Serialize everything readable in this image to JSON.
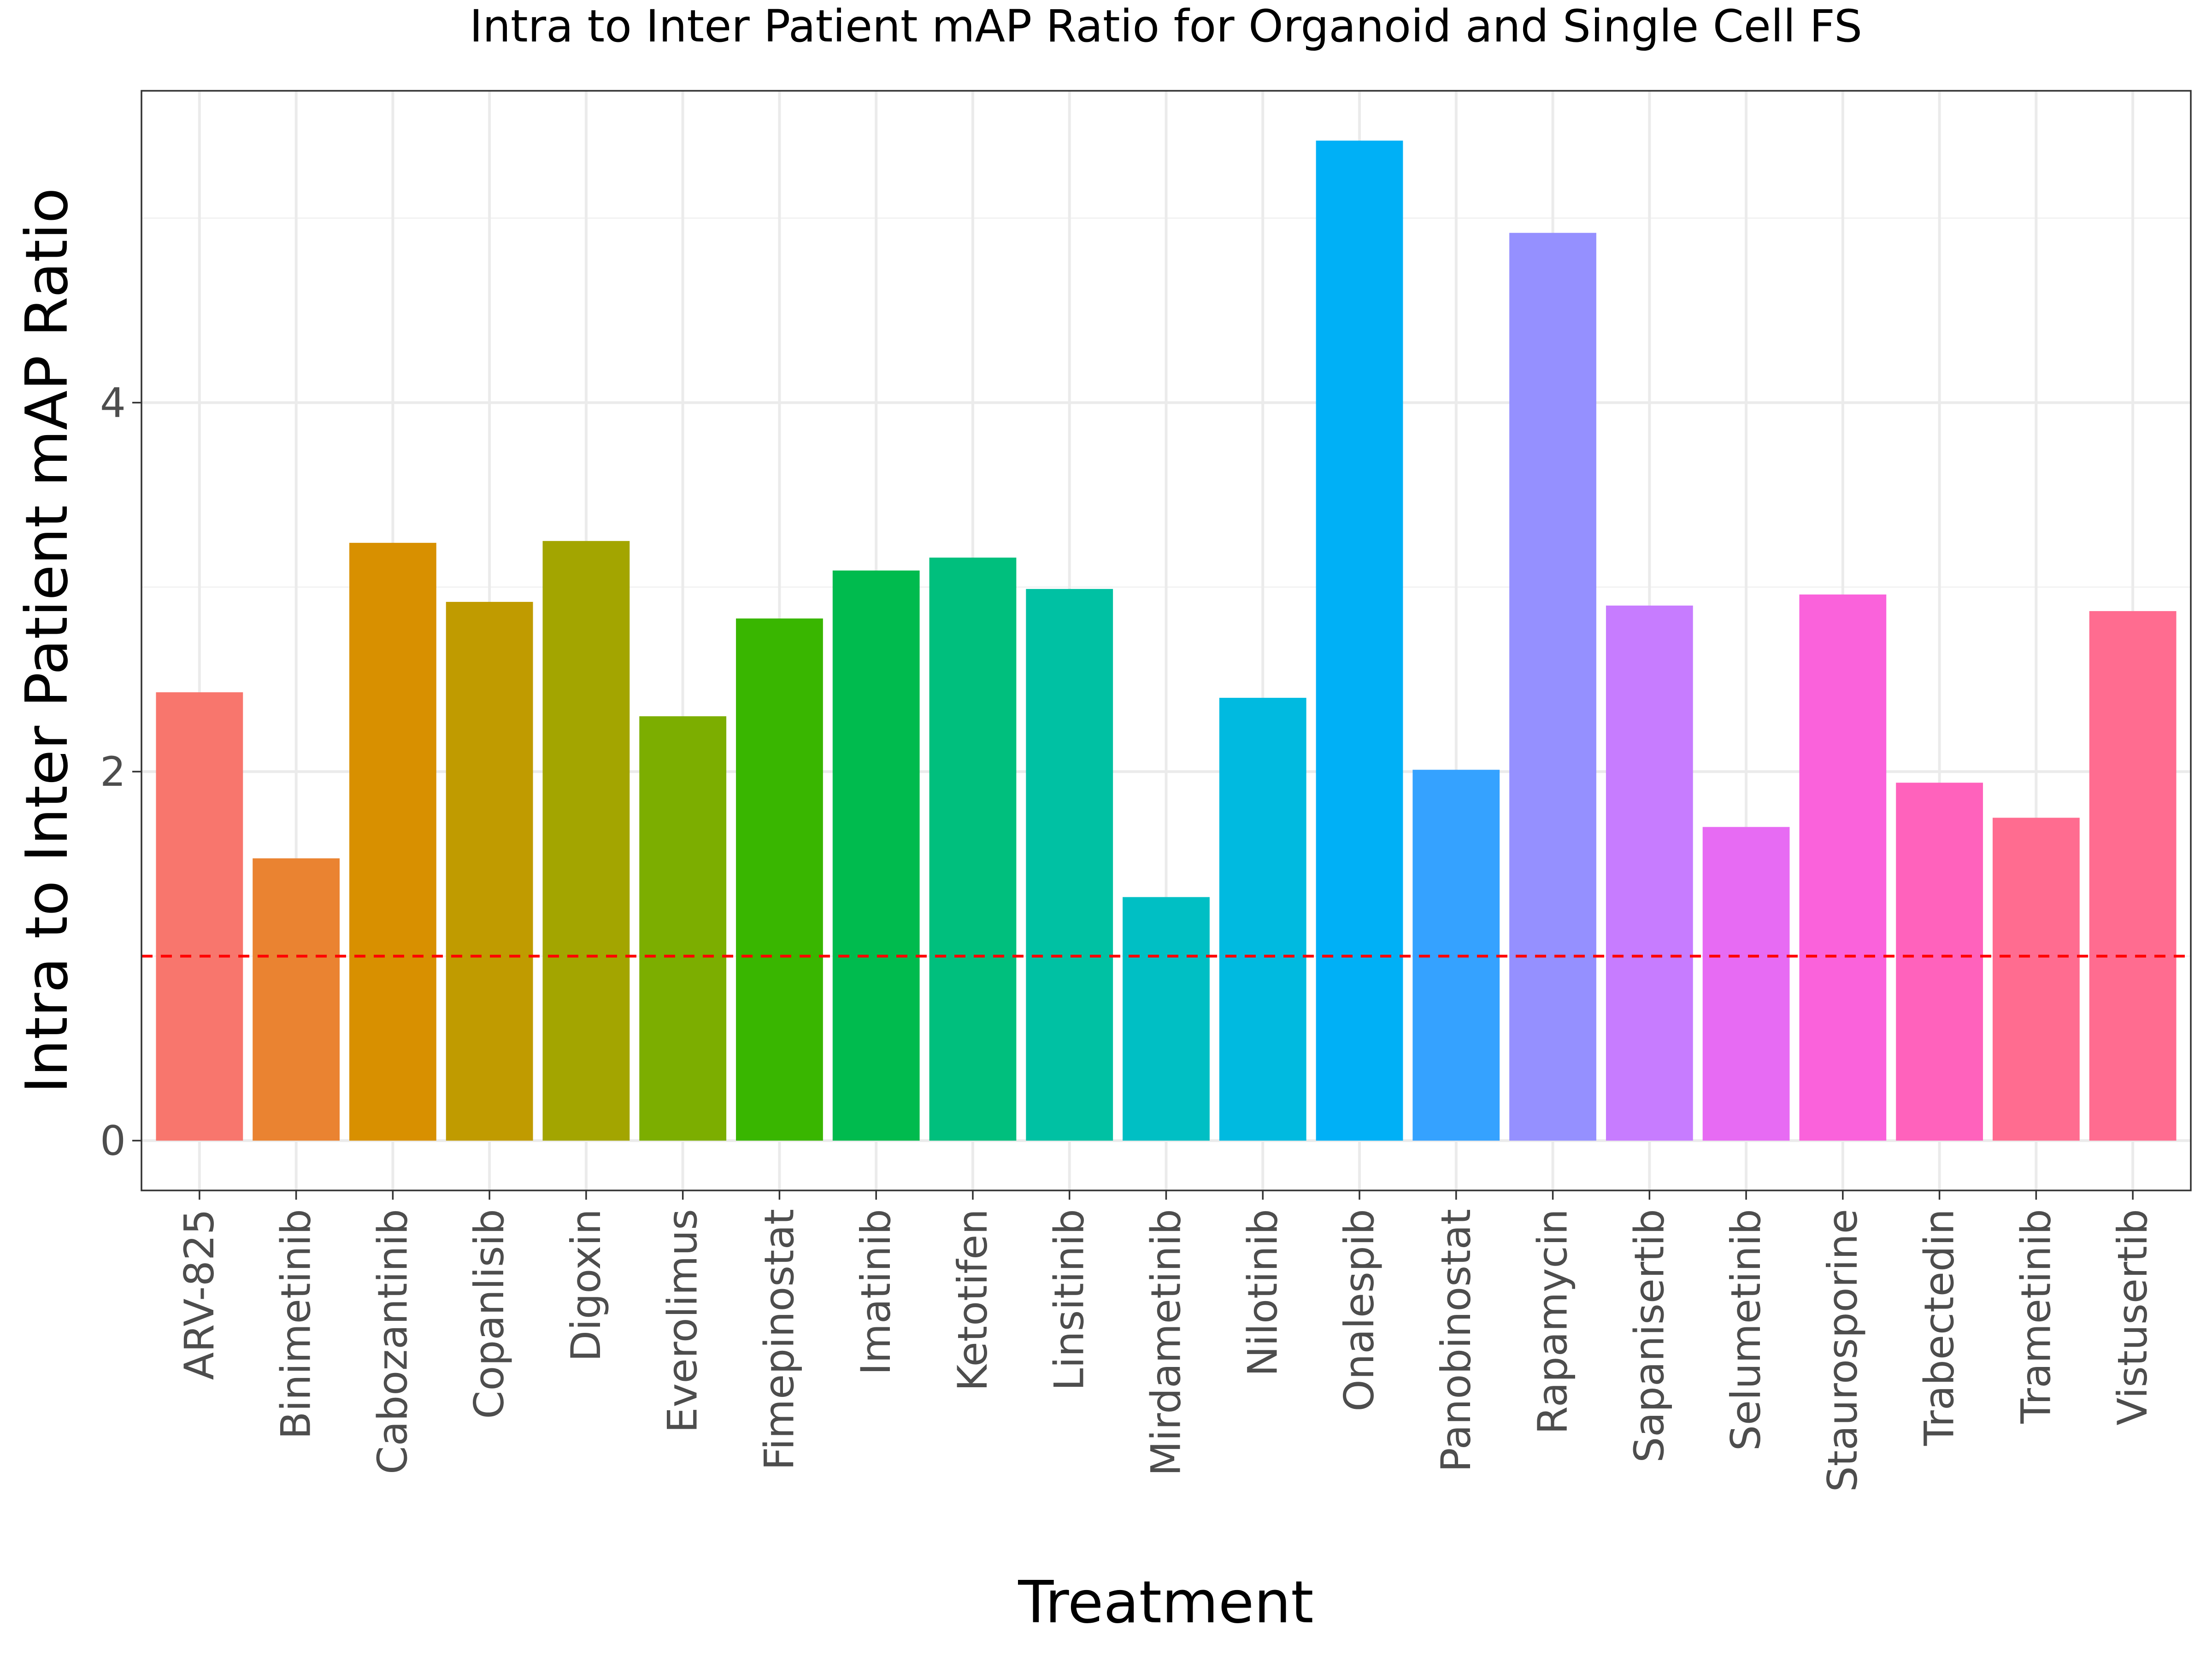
{
  "chart_data": {
    "type": "bar",
    "title": "Intra to Inter Patient mAP Ratio for Organoid and Single Cell FS",
    "xlabel": "Treatment",
    "ylabel": "Intra to Inter Patient mAP Ratio",
    "categories": [
      "ARV-825",
      "Binimetinib",
      "Cabozantinib",
      "Copanlisib",
      "Digoxin",
      "Everolimus",
      "Fimepinostat",
      "Imatinib",
      "Ketotifen",
      "Linsitinib",
      "Mirdametinib",
      "Nilotinib",
      "Onalespib",
      "Panobinostat",
      "Rapamycin",
      "Sapanisertib",
      "Selumetinib",
      "Staurosporine",
      "Trabectedin",
      "Trametinib",
      "Vistusertib"
    ],
    "values": [
      2.43,
      1.53,
      3.24,
      2.92,
      3.25,
      2.3,
      2.83,
      3.09,
      3.16,
      2.99,
      1.32,
      2.4,
      5.42,
      2.01,
      4.92,
      2.9,
      1.7,
      2.96,
      1.94,
      1.75,
      2.87
    ],
    "colors": [
      "#F8766D",
      "#EA8331",
      "#D89000",
      "#C09B00",
      "#A3A500",
      "#7CAE00",
      "#39B600",
      "#00BB4E",
      "#00BF7D",
      "#00C1A3",
      "#00BFC4",
      "#00BAE0",
      "#00B0F6",
      "#35A2FF",
      "#9590FF",
      "#C77CFF",
      "#E76BF3",
      "#FA62DB",
      "#FF62BC",
      "#FF6C90",
      "#FF6C90"
    ],
    "ylim": [
      -0.27,
      5.69
    ],
    "yticks": [
      0,
      2,
      4
    ],
    "ytick_labels": [
      "0",
      "2",
      "4"
    ],
    "reference_line": {
      "y": 1,
      "color": "#FF0000",
      "style": "dashed"
    },
    "grid": true,
    "legend": "none"
  }
}
